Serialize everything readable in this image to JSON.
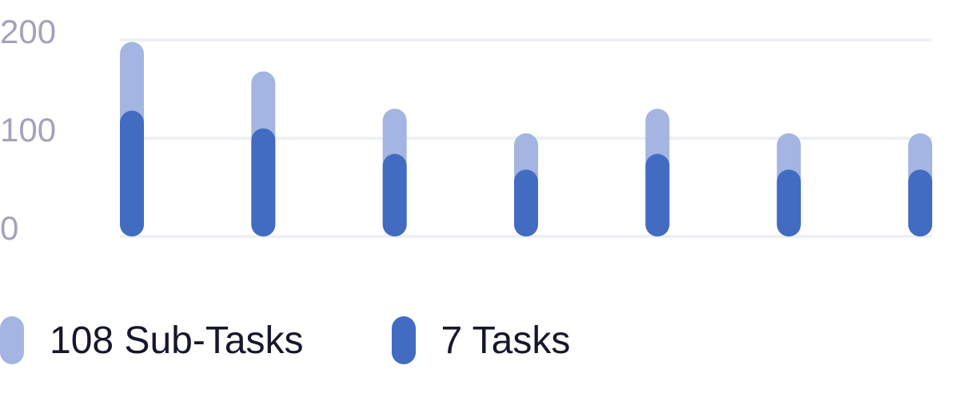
{
  "chart_data": {
    "type": "bar",
    "stacked": false,
    "overlapped": true,
    "categories": [
      "",
      "",
      "",
      "",
      "",
      "",
      ""
    ],
    "series": [
      {
        "name": "108 Sub-Tasks",
        "color": "#a3b5e0",
        "values": [
          198,
          168,
          130,
          105,
          130,
          105,
          105
        ]
      },
      {
        "name": "7 Tasks",
        "color": "#426bc2",
        "values": [
          128,
          110,
          84,
          68,
          84,
          68,
          68
        ]
      }
    ],
    "yticks": [
      0,
      100,
      200
    ],
    "ylim": [
      0,
      200
    ],
    "grid": true,
    "legend": "bottom-left",
    "title": "",
    "xlabel": "",
    "ylabel": ""
  },
  "colors": {
    "grid": "#eef0f4",
    "tick_text": "#a6a1b8",
    "legend_text": "#16172b"
  }
}
